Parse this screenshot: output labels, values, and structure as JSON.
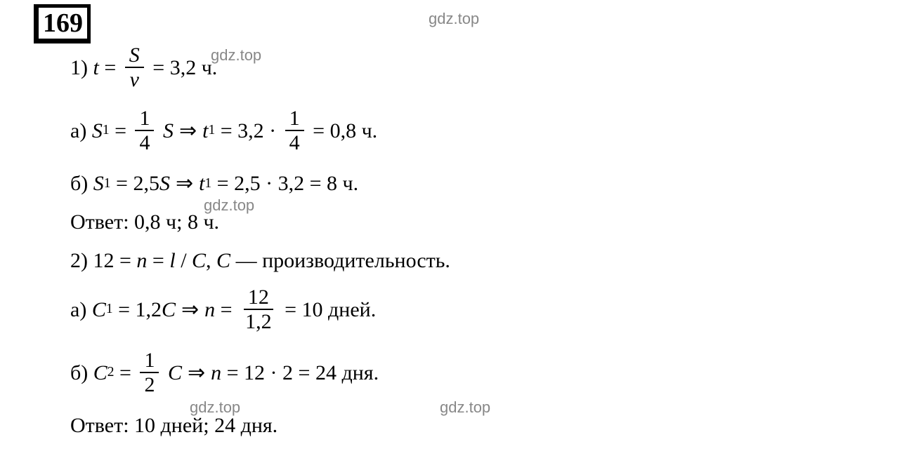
{
  "problem_number": "169",
  "watermark_text": "gdz.top",
  "colors": {
    "background": "#ffffff",
    "text": "#000000",
    "watermark": "#888888",
    "border": "#000000"
  },
  "typography": {
    "main_font": "Times New Roman",
    "main_fontsize": 30,
    "problem_number_fontsize": 38,
    "watermark_fontsize": 22
  },
  "part1": {
    "label": "1)",
    "formula_var": "t",
    "frac_num": "S",
    "frac_den": "v",
    "equals_value": "3,2",
    "time_unit": "ч.",
    "sub_a": {
      "label": "а)",
      "s_var": "S",
      "s_sub": "1",
      "eq_frac_num": "1",
      "eq_frac_den": "4",
      "s_right": "S",
      "t_var": "t",
      "t_sub": "1",
      "val1": "3,2",
      "mult_frac_num": "1",
      "mult_frac_den": "4",
      "result": "0,8",
      "unit": "ч."
    },
    "sub_b": {
      "label": "б)",
      "s_var": "S",
      "s_sub": "1",
      "coef": "2,5",
      "s_right": "S",
      "t_var": "t",
      "t_sub": "1",
      "val1": "2,5",
      "val2": "3,2",
      "result": "8",
      "unit": "ч."
    },
    "answer_label": "Ответ:",
    "answer_val1": "0,8 ч;",
    "answer_val2": "8 ч."
  },
  "part2": {
    "label": "2)",
    "val": "12",
    "n_var": "n",
    "l_var": "l",
    "c_var": "C",
    "c_sep": "/",
    "comma": ",",
    "c_desc": "— производительность.",
    "sub_a": {
      "label": "а)",
      "c_var": "C",
      "c_sub": "1",
      "coef": "1,2",
      "c_right": "C",
      "n_var": "n",
      "frac_num": "12",
      "frac_den": "1,2",
      "result": "10",
      "unit": "дней."
    },
    "sub_b": {
      "label": "б)",
      "c_var": "C",
      "c_sub": "2",
      "eq_frac_num": "1",
      "eq_frac_den": "2",
      "c_right": "C",
      "n_var": "n",
      "val1": "12",
      "val2": "2",
      "result": "24",
      "unit": "дня."
    },
    "answer_label": "Ответ:",
    "answer_val1": "10 дней;",
    "answer_val2": "24 дня."
  },
  "arrow_symbol": "⇒"
}
